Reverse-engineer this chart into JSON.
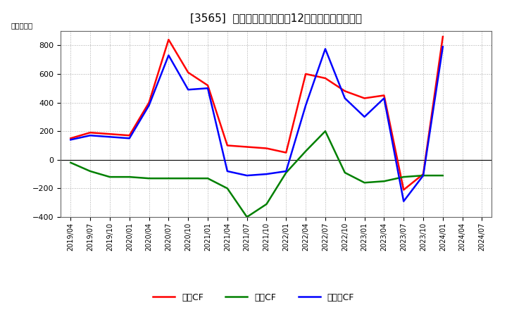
{
  "title": "[3565]  キャッシュフローの12か月移動合計の推移",
  "ylabel": "（百万円）",
  "x_labels": [
    "2019/04",
    "2019/07",
    "2019/10",
    "2020/01",
    "2020/04",
    "2020/07",
    "2020/10",
    "2021/01",
    "2021/04",
    "2021/07",
    "2021/10",
    "2022/01",
    "2022/04",
    "2022/07",
    "2022/10",
    "2023/01",
    "2023/04",
    "2023/07",
    "2023/10",
    "2024/01",
    "2024/04",
    "2024/07"
  ],
  "operating_cf": [
    150,
    190,
    180,
    170,
    400,
    840,
    610,
    520,
    100,
    90,
    80,
    50,
    600,
    570,
    480,
    430,
    450,
    -210,
    -100,
    860,
    null,
    null
  ],
  "investing_cf": [
    -20,
    -80,
    -120,
    -120,
    -130,
    -130,
    -130,
    -130,
    -200,
    -400,
    -310,
    -90,
    60,
    200,
    -90,
    -160,
    -150,
    -120,
    -110,
    -110,
    null,
    null
  ],
  "free_cf": [
    140,
    170,
    160,
    150,
    380,
    730,
    490,
    500,
    -80,
    -110,
    -100,
    -80,
    380,
    775,
    430,
    300,
    430,
    -290,
    -110,
    790,
    null,
    null
  ],
  "ylim": [
    -400,
    900
  ],
  "yticks": [
    -400,
    -200,
    0,
    200,
    400,
    600,
    800
  ],
  "colors": {
    "operating": "#ff0000",
    "investing": "#008000",
    "free": "#0000ff"
  },
  "bg_color": "#ffffff",
  "plot_bg_color": "#ffffff",
  "grid_color": "#aaaaaa",
  "legend_labels": [
    "営業CF",
    "投資CF",
    "フリーCF"
  ]
}
